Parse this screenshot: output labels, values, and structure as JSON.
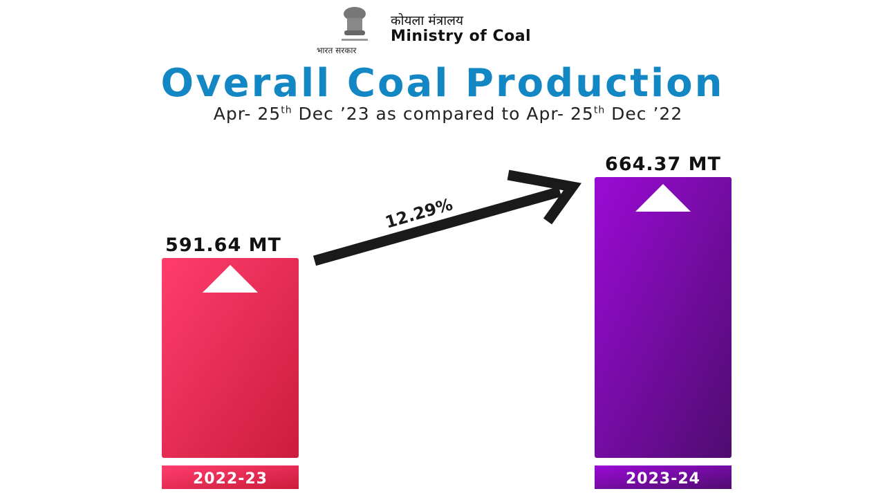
{
  "header": {
    "ministry_hindi": "कोयला मंत्रालय",
    "ministry_english": "Ministry of Coal",
    "govt_hindi": "भारत सरकार",
    "emblem_icon": "state-emblem-of-india-icon"
  },
  "title": "Overall Coal Production",
  "subtitle": {
    "part1": "Apr- 25",
    "sup1": "th",
    "part2": " Dec ’23 as compared to Apr- 25",
    "sup2": "th",
    "part3": " Dec ’22"
  },
  "chart_data": {
    "type": "bar",
    "categories": [
      "2022-23",
      "2023-24"
    ],
    "values": [
      591.64,
      664.37
    ],
    "unit": "MT",
    "data_labels": [
      "591.64 MT",
      "664.37 MT"
    ],
    "annotation": "12.29%",
    "ylim": [
      412,
      664.37
    ],
    "grid": false,
    "colors": [
      [
        "#ff3d6e",
        "#cc1c3c"
      ],
      [
        "#9b0bd6",
        "#4f0c70"
      ]
    ],
    "arrow_color": "#1a1a1a"
  }
}
